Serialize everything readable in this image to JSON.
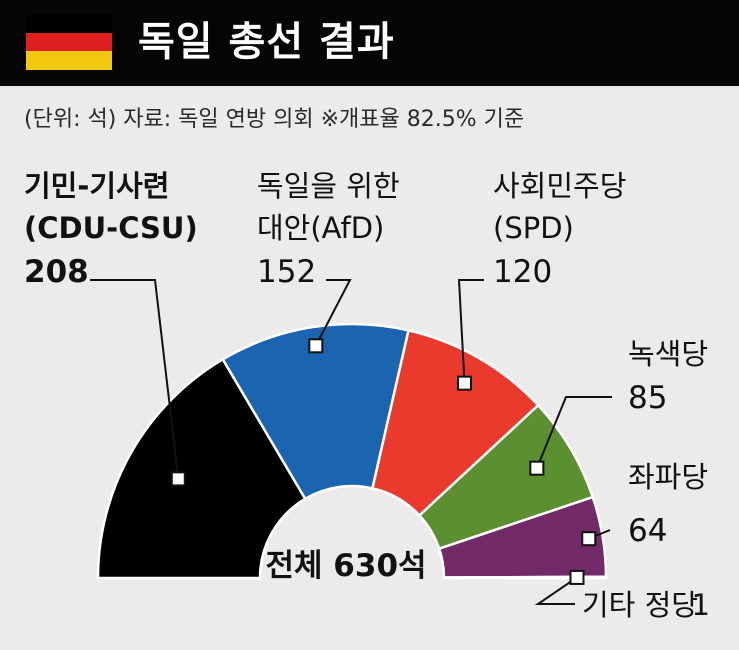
{
  "header": {
    "title": "독일 총선 결과",
    "flag": {
      "colors": [
        "#000000",
        "#dd1f1f",
        "#f2c80e"
      ]
    }
  },
  "note": "(단위: 석)  자료: 독일 연방 의회  ※개표율 82.5% 기준",
  "chart_data": {
    "type": "semicircle-donut",
    "unit": "석",
    "total_label": "전체 630석",
    "total": 630,
    "series": [
      {
        "name": "기민-기사련\n(CDU-CSU)",
        "value": 208,
        "color": "#000000",
        "bold": true
      },
      {
        "name": "독일을 위한\n대안(AfD)",
        "value": 152,
        "color": "#1a64b0"
      },
      {
        "name": "사회민주당\n(SPD)",
        "value": 120,
        "color": "#ea3a2d"
      },
      {
        "name": "녹색당",
        "value": 85,
        "color": "#5c8f30"
      },
      {
        "name": "좌파당",
        "value": 64,
        "color": "#722a68"
      },
      {
        "name": "기타 정당",
        "value": 1,
        "color": "#ffffff"
      }
    ]
  }
}
